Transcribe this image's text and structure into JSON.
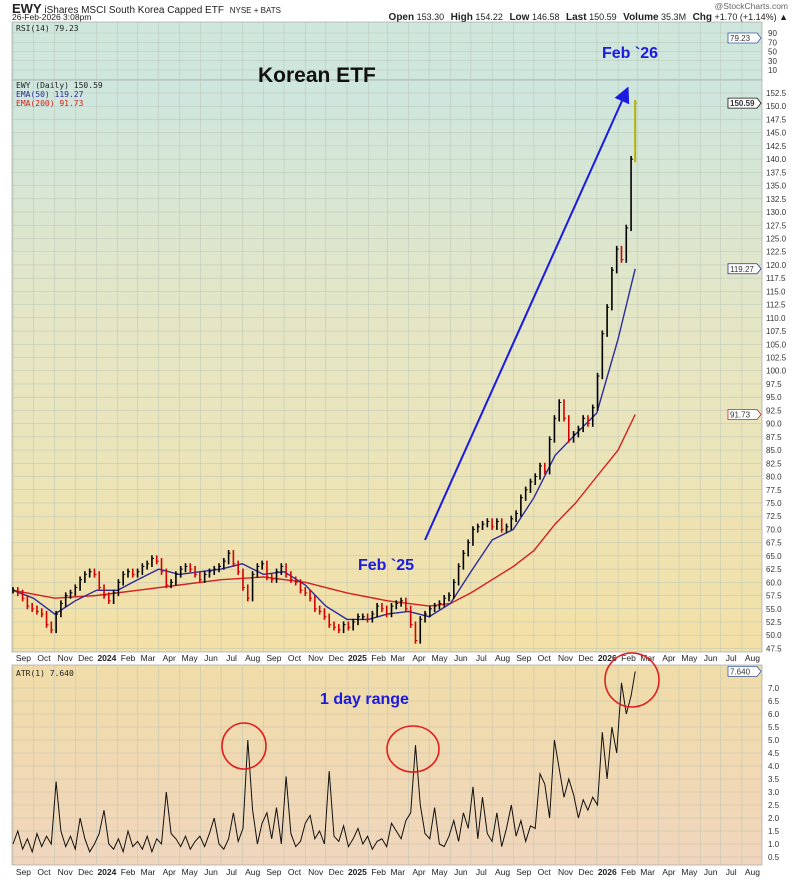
{
  "header": {
    "symbol": "EWY",
    "name": "iShares MSCI South Korea Capped ETF",
    "exchange": "NYSE + BATS",
    "datetime": "26-Feb-2026 3:08pm",
    "brand": "@StockCharts.com",
    "quote": {
      "open_label": "Open",
      "open": "153.30",
      "high_label": "High",
      "high": "154.22",
      "low_label": "Low",
      "low": "146.58",
      "last_label": "Last",
      "last": "150.59",
      "volume_label": "Volume",
      "volume": "35.3M",
      "chg_label": "Chg",
      "chg": "+1.70 (+1.14%) ▲"
    }
  },
  "annotations": {
    "title": "Korean ETF",
    "feb26": "Feb `26",
    "feb25": "Feb `25",
    "day_range": "1 day range"
  },
  "colors": {
    "up": "#000000",
    "down": "#d40000",
    "last_bar": "#b8b000",
    "ema50": "#2b2b9a",
    "ema200": "#d42020",
    "arrow": "#1a1ae0",
    "circle": "#e02020",
    "annotation": "#1a1ae0"
  },
  "chart_data": [
    {
      "type": "table",
      "panel": "rsi",
      "legend": "RSI(14) 79.23",
      "value": 79.23,
      "value_tag": "79.23",
      "y_ticks": [
        "90",
        "70",
        "50",
        "30",
        "10"
      ],
      "ylim": [
        0,
        100
      ]
    },
    {
      "type": "bar",
      "panel": "price",
      "legend": [
        "EWY (Daily) 150.59",
        "EMA(50) 119.27",
        "EMA(200) 91.73"
      ],
      "last_tag": "150.59",
      "ema50_tag": "119.27",
      "ema200_tag": "91.73",
      "ylim": [
        47.5,
        152.5
      ],
      "y_ticks": [
        "152.5",
        "150.0",
        "147.5",
        "145.0",
        "142.5",
        "140.0",
        "137.5",
        "135.0",
        "132.5",
        "130.0",
        "127.5",
        "125.0",
        "122.5",
        "120.0",
        "117.5",
        "115.0",
        "112.5",
        "110.0",
        "107.5",
        "105.0",
        "102.5",
        "100.0",
        "97.5",
        "95.0",
        "92.5",
        "90.0",
        "87.5",
        "85.0",
        "82.5",
        "80.0",
        "77.5",
        "75.0",
        "72.5",
        "70.0",
        "67.5",
        "65.0",
        "62.5",
        "60.0",
        "57.5",
        "55.0",
        "52.5",
        "50.0",
        "47.5"
      ],
      "x_labels": [
        "Sep",
        "Oct",
        "Nov",
        "Dec",
        "2024",
        "Feb",
        "Mar",
        "Apr",
        "May",
        "Jun",
        "Jul",
        "Aug",
        "Sep",
        "Oct",
        "Nov",
        "Dec",
        "2025",
        "Feb",
        "Mar",
        "Apr",
        "May",
        "Jun",
        "Jul",
        "Aug",
        "Sep",
        "Oct",
        "Nov",
        "Dec",
        "2026",
        "Feb",
        "Mar",
        "Apr",
        "May",
        "Jun",
        "Jul",
        "Aug"
      ],
      "dates": [
        "2023-09-01",
        "2023-09-08",
        "2023-09-15",
        "2023-09-22",
        "2023-09-29",
        "2023-10-06",
        "2023-10-13",
        "2023-10-20",
        "2023-10-27",
        "2023-11-03",
        "2023-11-10",
        "2023-11-17",
        "2023-11-24",
        "2023-12-01",
        "2023-12-08",
        "2023-12-15",
        "2023-12-22",
        "2023-12-29",
        "2024-01-05",
        "2024-01-12",
        "2024-01-19",
        "2024-01-26",
        "2024-02-02",
        "2024-02-09",
        "2024-02-16",
        "2024-02-23",
        "2024-03-01",
        "2024-03-08",
        "2024-03-15",
        "2024-03-22",
        "2024-03-29",
        "2024-04-05",
        "2024-04-12",
        "2024-04-19",
        "2024-04-26",
        "2024-05-03",
        "2024-05-10",
        "2024-05-17",
        "2024-05-24",
        "2024-05-31",
        "2024-06-07",
        "2024-06-14",
        "2024-06-21",
        "2024-06-28",
        "2024-07-05",
        "2024-07-12",
        "2024-07-19",
        "2024-07-26",
        "2024-08-02",
        "2024-08-09",
        "2024-08-16",
        "2024-08-23",
        "2024-08-30",
        "2024-09-06",
        "2024-09-13",
        "2024-09-20",
        "2024-09-27",
        "2024-10-04",
        "2024-10-11",
        "2024-10-18",
        "2024-10-25",
        "2024-11-01",
        "2024-11-08",
        "2024-11-15",
        "2024-11-22",
        "2024-11-29",
        "2024-12-06",
        "2024-12-13",
        "2024-12-20",
        "2024-12-27",
        "2025-01-03",
        "2025-01-10",
        "2025-01-17",
        "2025-01-24",
        "2025-01-31",
        "2025-02-07",
        "2025-02-14",
        "2025-02-21",
        "2025-02-28",
        "2025-03-07",
        "2025-03-14",
        "2025-03-21",
        "2025-03-28",
        "2025-04-04",
        "2025-04-11",
        "2025-04-18",
        "2025-04-25",
        "2025-05-02",
        "2025-05-09",
        "2025-05-16",
        "2025-05-23",
        "2025-05-30",
        "2025-06-06",
        "2025-06-13",
        "2025-06-20",
        "2025-06-27",
        "2025-07-04",
        "2025-07-11",
        "2025-07-18",
        "2025-07-25",
        "2025-08-01",
        "2025-08-08",
        "2025-08-15",
        "2025-08-22",
        "2025-08-29",
        "2025-09-05",
        "2025-09-12",
        "2025-09-19",
        "2025-09-26",
        "2025-10-03",
        "2025-10-10",
        "2025-10-17",
        "2025-10-24",
        "2025-10-31",
        "2025-11-07",
        "2025-11-14",
        "2025-11-21",
        "2025-11-28",
        "2025-12-05",
        "2025-12-12",
        "2025-12-19",
        "2025-12-26",
        "2026-01-02",
        "2026-01-09",
        "2026-01-16",
        "2026-01-23",
        "2026-01-30",
        "2026-02-06",
        "2026-02-13",
        "2026-02-20",
        "2026-02-26"
      ],
      "close": [
        58.5,
        58,
        57,
        55.5,
        55,
        54.5,
        54,
        52,
        51,
        54,
        56,
        57.5,
        58,
        59,
        60.5,
        61.5,
        62,
        61.5,
        59,
        57.5,
        56.5,
        58,
        60,
        61.5,
        62,
        61.5,
        62,
        63,
        63.5,
        64.5,
        64,
        62,
        59.5,
        60,
        61.5,
        62.5,
        63,
        62.5,
        61.5,
        60.5,
        61.5,
        62,
        62.5,
        63,
        64,
        65.5,
        63.5,
        62,
        59,
        57,
        61.5,
        63,
        63.5,
        61,
        60.5,
        62,
        63,
        61.5,
        60.5,
        60,
        58.5,
        58,
        57,
        55,
        54.5,
        53.5,
        52,
        51.5,
        51,
        52,
        51.5,
        52.5,
        53.5,
        53.5,
        53,
        54,
        55.5,
        55,
        54,
        55.5,
        56,
        56.5,
        55,
        52,
        49,
        53,
        54,
        55,
        55.5,
        56,
        57,
        57.5,
        60,
        63,
        65.5,
        67.5,
        70,
        70.5,
        71,
        71.5,
        70.5,
        71.5,
        70,
        70.5,
        72,
        73,
        76,
        77.5,
        79,
        80,
        82,
        81,
        87,
        91,
        94,
        91,
        87,
        88,
        89,
        91,
        90,
        93,
        99,
        107,
        112,
        119,
        123,
        121,
        127,
        140,
        150.59
      ],
      "ema50": [
        [
          "2023-09-01",
          58.5
        ],
        [
          "2023-10-01",
          57
        ],
        [
          "2023-11-01",
          54
        ],
        [
          "2023-12-01",
          56.5
        ],
        [
          "2024-01-01",
          58.5
        ],
        [
          "2024-02-01",
          58.5
        ],
        [
          "2024-03-01",
          60.5
        ],
        [
          "2024-04-01",
          62.5
        ],
        [
          "2024-05-01",
          61.5
        ],
        [
          "2024-06-01",
          62
        ],
        [
          "2024-07-01",
          62.5
        ],
        [
          "2024-08-01",
          63.5
        ],
        [
          "2024-09-01",
          61.5
        ],
        [
          "2024-10-01",
          62
        ],
        [
          "2024-11-01",
          59.5
        ],
        [
          "2024-12-01",
          55.5
        ],
        [
          "2025-01-01",
          53
        ],
        [
          "2025-02-01",
          53
        ],
        [
          "2025-03-01",
          54
        ],
        [
          "2025-04-01",
          54.5
        ],
        [
          "2025-05-01",
          53.5
        ],
        [
          "2025-06-01",
          56
        ],
        [
          "2025-07-01",
          62
        ],
        [
          "2025-08-01",
          68
        ],
        [
          "2025-09-01",
          70
        ],
        [
          "2025-10-01",
          76
        ],
        [
          "2025-11-01",
          84
        ],
        [
          "2025-12-01",
          88
        ],
        [
          "2026-01-01",
          92
        ],
        [
          "2026-02-01",
          106
        ],
        [
          "2026-02-26",
          119.27
        ]
      ],
      "ema200": [
        [
          "2023-09-01",
          58.5
        ],
        [
          "2023-11-01",
          57
        ],
        [
          "2024-01-01",
          57.5
        ],
        [
          "2024-03-01",
          58.5
        ],
        [
          "2024-05-01",
          59.5
        ],
        [
          "2024-07-01",
          60.5
        ],
        [
          "2024-09-01",
          61
        ],
        [
          "2024-11-01",
          60
        ],
        [
          "2025-01-01",
          58
        ],
        [
          "2025-03-01",
          56.5
        ],
        [
          "2025-05-01",
          55.5
        ],
        [
          "2025-06-01",
          56
        ],
        [
          "2025-07-01",
          58
        ],
        [
          "2025-08-01",
          60.5
        ],
        [
          "2025-09-01",
          63
        ],
        [
          "2025-10-01",
          66
        ],
        [
          "2025-11-01",
          71
        ],
        [
          "2025-12-01",
          75
        ],
        [
          "2026-01-01",
          80
        ],
        [
          "2026-02-01",
          85
        ],
        [
          "2026-02-26",
          91.73
        ]
      ]
    },
    {
      "type": "line",
      "panel": "atr",
      "legend": "ATR(1) 7.640",
      "value_tag": "7.640",
      "ylim": [
        0,
        7.7
      ],
      "y_ticks": [
        "7.0",
        "6.5",
        "6.0",
        "5.5",
        "5.0",
        "4.5",
        "4.0",
        "3.5",
        "3.0",
        "2.5",
        "2.0",
        "1.5",
        "1.0",
        "0.5"
      ],
      "values": [
        1.0,
        1.5,
        0.8,
        1.2,
        0.7,
        1.4,
        0.9,
        1.3,
        1.0,
        3.4,
        1.5,
        0.9,
        1.3,
        0.8,
        2.0,
        1.2,
        0.7,
        1.0,
        1.4,
        2.3,
        1.0,
        0.8,
        1.2,
        0.7,
        1.5,
        0.9,
        1.1,
        0.8,
        1.3,
        0.7,
        1.2,
        1.0,
        3.0,
        1.4,
        1.2,
        0.9,
        1.3,
        0.8,
        1.1,
        1.3,
        0.9,
        1.4,
        2.0,
        1.0,
        0.8,
        1.2,
        2.2,
        1.1,
        1.6,
        5.0,
        2.3,
        1.0,
        1.8,
        2.2,
        1.2,
        2.4,
        1.0,
        3.6,
        1.4,
        0.9,
        1.1,
        1.8,
        2.1,
        1.2,
        1.5,
        1.0,
        3.8,
        1.3,
        1.1,
        1.7,
        0.9,
        1.2,
        1.6,
        1.0,
        1.3,
        0.8,
        1.1,
        1.2,
        0.9,
        1.8,
        1.5,
        1.2,
        1.9,
        2.2,
        4.8,
        2.5,
        1.4,
        1.2,
        2.4,
        1.0,
        0.9,
        1.3,
        1.9,
        1.1,
        2.2,
        1.6,
        3.2,
        1.2,
        2.8,
        1.4,
        1.1,
        2.2,
        0.9,
        1.6,
        2.5,
        1.3,
        1.9,
        1.1,
        1.7,
        1.6,
        3.7,
        3.3,
        2.0,
        5.0,
        3.9,
        2.8,
        3.5,
        2.9,
        2.0,
        2.7,
        2.3,
        2.8,
        2.5,
        5.3,
        3.5,
        5.5,
        4.5,
        7.2,
        6.0,
        6.7,
        7.64
      ]
    }
  ]
}
